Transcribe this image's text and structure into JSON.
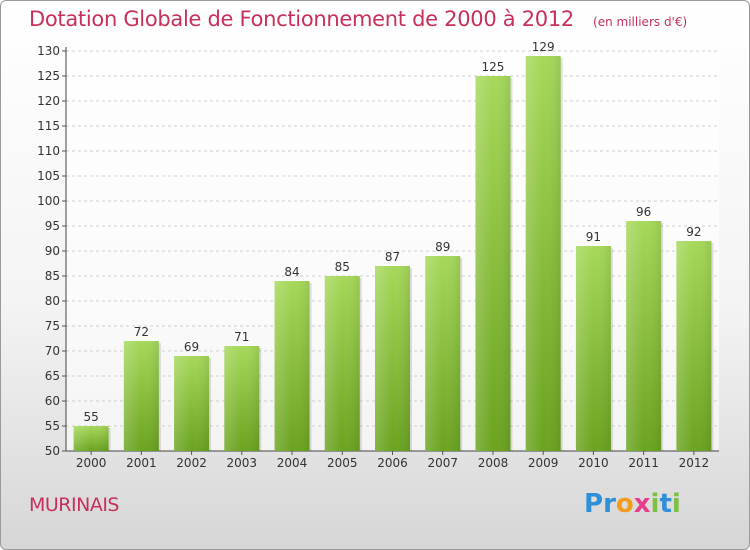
{
  "header": {
    "title": "Dotation Globale de Fonctionnement de 2000 à 2012",
    "unit": "(en milliers d'€)"
  },
  "footer": {
    "commune": "MURINAIS",
    "logo_letters": [
      {
        "ch": "P",
        "color": "#2f8fd8"
      },
      {
        "ch": "r",
        "color": "#2f8fd8"
      },
      {
        "ch": "o",
        "color": "#f39b1b"
      },
      {
        "ch": "x",
        "color": "#e83c8c"
      },
      {
        "ch": "i",
        "color": "#7cc142"
      },
      {
        "ch": "t",
        "color": "#2f8fd8"
      },
      {
        "ch": "i",
        "color": "#7cc142"
      }
    ]
  },
  "colors": {
    "bar_top": "#a6d85a",
    "bar_bottom": "#6aa31f",
    "grid": "#cfcfcf",
    "accent": "#c8305a"
  },
  "chart_data": {
    "type": "bar",
    "title": "Dotation Globale de Fonctionnement de 2000 à 2012",
    "subtitle": "(en milliers d'€)",
    "categories": [
      "2000",
      "2001",
      "2002",
      "2003",
      "2004",
      "2005",
      "2006",
      "2007",
      "2008",
      "2009",
      "2010",
      "2011",
      "2012"
    ],
    "values": [
      55,
      72,
      69,
      71,
      84,
      85,
      87,
      89,
      125,
      129,
      91,
      96,
      92
    ],
    "ylim": [
      50,
      130
    ],
    "yticks": [
      50,
      55,
      60,
      65,
      70,
      75,
      80,
      85,
      90,
      95,
      100,
      105,
      110,
      115,
      120,
      125,
      130
    ],
    "grid": true,
    "xlabel": "",
    "ylabel": ""
  }
}
